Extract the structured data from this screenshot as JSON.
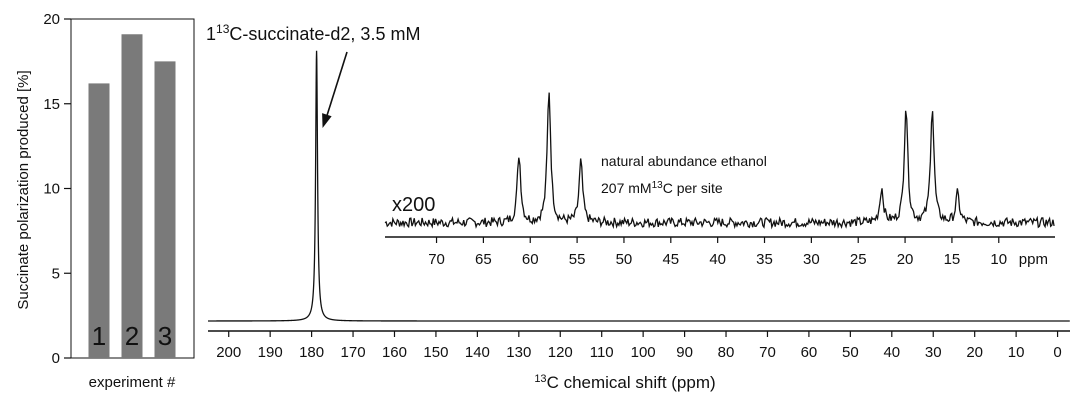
{
  "chart_data": [
    {
      "type": "bar",
      "ylabel": "Succinate polarization produced [%]",
      "xlabel": "experiment #",
      "categories": [
        "1",
        "2",
        "3"
      ],
      "values": [
        16.2,
        19.1,
        17.5
      ],
      "ylim": [
        0,
        20
      ],
      "yticks": [
        0,
        5,
        10,
        15,
        20
      ],
      "colors": {
        "bar": "#7a7a7a"
      }
    },
    {
      "type": "line",
      "xlabel_parts": {
        "sup": "13",
        "rest": "C chemical shift (ppm)"
      },
      "xlim": [
        205,
        -3
      ],
      "xticks": [
        200,
        190,
        180,
        170,
        160,
        150,
        140,
        130,
        120,
        110,
        100,
        90,
        80,
        70,
        60,
        50,
        40,
        30,
        20,
        10,
        0
      ],
      "ylim": [
        0,
        19
      ],
      "peaks": [
        {
          "x": 178.8,
          "height": 18.6,
          "width": 0.55
        }
      ],
      "annotation": {
        "pre": "1",
        "sup": "13",
        "rest": "C-succinate-d2, 3.5 mM",
        "target_x": 178.8
      }
    },
    {
      "type": "line",
      "label": "x200",
      "annotation_lines": [
        {
          "text": "natural abundance ethanol"
        },
        {
          "pre": "207 mM",
          "sup": "13",
          "rest": "C per site"
        }
      ],
      "xlim": [
        75.5,
        4
      ],
      "xticks": [
        70,
        65,
        60,
        55,
        50,
        45,
        40,
        35,
        30,
        25,
        20,
        15,
        10
      ],
      "unit_label": "ppm",
      "ylim": [
        0,
        8
      ],
      "baseline": 0.2,
      "peaks": [
        {
          "x": 61.2,
          "height": 4.0
        },
        {
          "x": 58.0,
          "height": 7.8
        },
        {
          "x": 54.6,
          "height": 3.6
        },
        {
          "x": 22.5,
          "height": 2.0
        },
        {
          "x": 19.9,
          "height": 6.9
        },
        {
          "x": 17.1,
          "height": 6.8
        },
        {
          "x": 14.4,
          "height": 1.7
        }
      ],
      "peak_width": 0.45
    }
  ]
}
